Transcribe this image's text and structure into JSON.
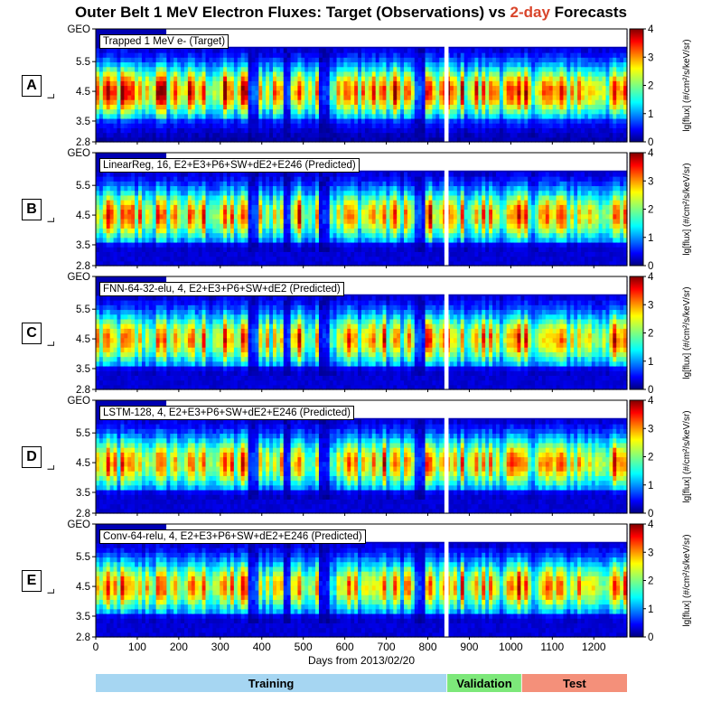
{
  "title": {
    "prefix": "Outer Belt 1 MeV Electron Fluxes: Target (Observations) vs ",
    "highlight": "2-day",
    "suffix": " Forecasts",
    "highlight_color": "#d9452b"
  },
  "chart_data": {
    "type": "heatmap",
    "xlabel": "Days from 2013/02/20",
    "xlim": [
      0,
      1280
    ],
    "x_ticks": [
      "0",
      "100",
      "200",
      "300",
      "400",
      "500",
      "600",
      "700",
      "800",
      "900",
      "1000",
      "1100",
      "1200"
    ],
    "ylabel": "L",
    "ylim": [
      2.8,
      6.6
    ],
    "y_ticks": [
      {
        "value": 2.8,
        "label": "2.8"
      },
      {
        "value": 3.5,
        "label": "3.5"
      },
      {
        "value": 4.5,
        "label": "4.5"
      },
      {
        "value": 5.5,
        "label": "5.5"
      },
      {
        "value": 6.6,
        "label": "GEO"
      }
    ],
    "colorbar": {
      "label": "lg[flux] (#/cm²/s/keV/sr)",
      "range": [
        0,
        4
      ],
      "ticks": [
        "0",
        "1",
        "2",
        "3",
        "4"
      ],
      "colormap": "jet"
    },
    "panels": [
      {
        "letter": "A",
        "label": "Trapped 1 MeV e- (Target)"
      },
      {
        "letter": "B",
        "label": "LinearReg, 16, E2+E3+P6+SW+dE2+E246 (Predicted)"
      },
      {
        "letter": "C",
        "label": "FNN-64-32-elu, 4, E2+E3+P6+SW+dE2 (Predicted)"
      },
      {
        "letter": "D",
        "label": "LSTM-128, 4, E2+E3+P6+SW+dE2+E246 (Predicted)"
      },
      {
        "letter": "E",
        "label": "Conv-64-relu, 4, E2+E3+P6+SW+dE2+E246 (Predicted)"
      }
    ],
    "data_gap_days": [
      840,
      850
    ],
    "data_splits": [
      {
        "name": "Training",
        "start": 0,
        "end": 845,
        "color": "#a6d6f2"
      },
      {
        "name": "Validation",
        "start": 847,
        "end": 1025,
        "color": "#7de87a"
      },
      {
        "name": "Test",
        "start": 1027,
        "end": 1283,
        "color": "#f4907a"
      }
    ]
  }
}
